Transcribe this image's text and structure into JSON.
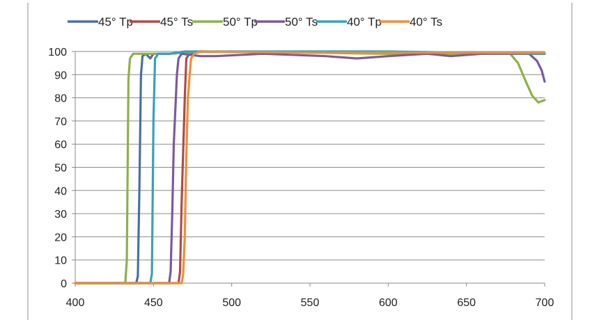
{
  "chart_data": {
    "type": "line",
    "title": "",
    "xlabel": "",
    "ylabel": "",
    "xlim": [
      400,
      700
    ],
    "ylim": [
      0,
      100
    ],
    "x_ticks": [
      400,
      450,
      500,
      550,
      600,
      650,
      700
    ],
    "y_ticks": [
      0,
      10,
      20,
      30,
      40,
      50,
      60,
      70,
      80,
      90,
      100
    ],
    "grid": "horizontal",
    "legend_position": "top",
    "series": [
      {
        "name": "45° Tp",
        "color": "#4a6fa5",
        "points": [
          [
            400,
            0
          ],
          [
            439,
            0
          ],
          [
            440,
            3
          ],
          [
            441,
            40
          ],
          [
            442,
            90
          ],
          [
            443,
            98
          ],
          [
            445,
            99
          ],
          [
            448,
            97
          ],
          [
            450,
            99
          ],
          [
            460,
            99
          ],
          [
            480,
            100
          ],
          [
            550,
            99.5
          ],
          [
            600,
            99.5
          ],
          [
            650,
            99
          ],
          [
            700,
            99
          ]
        ]
      },
      {
        "name": "45° Ts",
        "color": "#b24a45",
        "points": [
          [
            400,
            0
          ],
          [
            466,
            0
          ],
          [
            467,
            5
          ],
          [
            468,
            35
          ],
          [
            470,
            80
          ],
          [
            471,
            97
          ],
          [
            473,
            99
          ],
          [
            480,
            100
          ],
          [
            550,
            99.5
          ],
          [
            600,
            99.5
          ],
          [
            650,
            99.5
          ],
          [
            700,
            99
          ]
        ]
      },
      {
        "name": "50° Tp",
        "color": "#8fb04a",
        "points": [
          [
            400,
            0
          ],
          [
            432,
            0
          ],
          [
            433,
            10
          ],
          [
            434,
            88
          ],
          [
            435,
            97
          ],
          [
            437,
            99
          ],
          [
            440,
            99
          ],
          [
            445,
            99
          ],
          [
            460,
            99
          ],
          [
            480,
            100
          ],
          [
            550,
            99.5
          ],
          [
            600,
            99
          ],
          [
            650,
            99
          ],
          [
            678,
            99
          ],
          [
            683,
            95
          ],
          [
            688,
            87
          ],
          [
            692,
            81
          ],
          [
            696,
            78
          ],
          [
            700,
            79
          ]
        ]
      },
      {
        "name": "50° Ts",
        "color": "#7a5a9c",
        "points": [
          [
            400,
            0
          ],
          [
            460,
            0
          ],
          [
            461,
            5
          ],
          [
            462,
            30
          ],
          [
            463,
            60
          ],
          [
            465,
            90
          ],
          [
            466,
            97
          ],
          [
            468,
            99
          ],
          [
            480,
            98
          ],
          [
            490,
            98
          ],
          [
            520,
            99
          ],
          [
            560,
            98
          ],
          [
            580,
            97
          ],
          [
            600,
            98
          ],
          [
            625,
            99
          ],
          [
            640,
            98
          ],
          [
            660,
            99
          ],
          [
            680,
            99
          ],
          [
            690,
            99
          ],
          [
            695,
            96
          ],
          [
            698,
            92
          ],
          [
            700,
            87
          ]
        ]
      },
      {
        "name": "40° Tp",
        "color": "#3aa0b8",
        "points": [
          [
            400,
            0
          ],
          [
            448,
            0
          ],
          [
            449,
            4
          ],
          [
            450,
            70
          ],
          [
            451,
            97
          ],
          [
            453,
            99
          ],
          [
            460,
            99
          ],
          [
            470,
            100
          ],
          [
            480,
            100
          ],
          [
            500,
            100
          ],
          [
            550,
            100
          ],
          [
            600,
            100
          ],
          [
            650,
            99.5
          ],
          [
            700,
            99
          ]
        ]
      },
      {
        "name": "40° Ts",
        "color": "#e8903c",
        "points": [
          [
            400,
            0
          ],
          [
            468,
            0
          ],
          [
            469,
            4
          ],
          [
            470,
            20
          ],
          [
            471,
            55
          ],
          [
            472,
            80
          ],
          [
            474,
            97
          ],
          [
            476,
            99
          ],
          [
            480,
            100
          ],
          [
            550,
            99.5
          ],
          [
            600,
            99.5
          ],
          [
            650,
            99.5
          ],
          [
            700,
            99.5
          ]
        ]
      }
    ]
  }
}
